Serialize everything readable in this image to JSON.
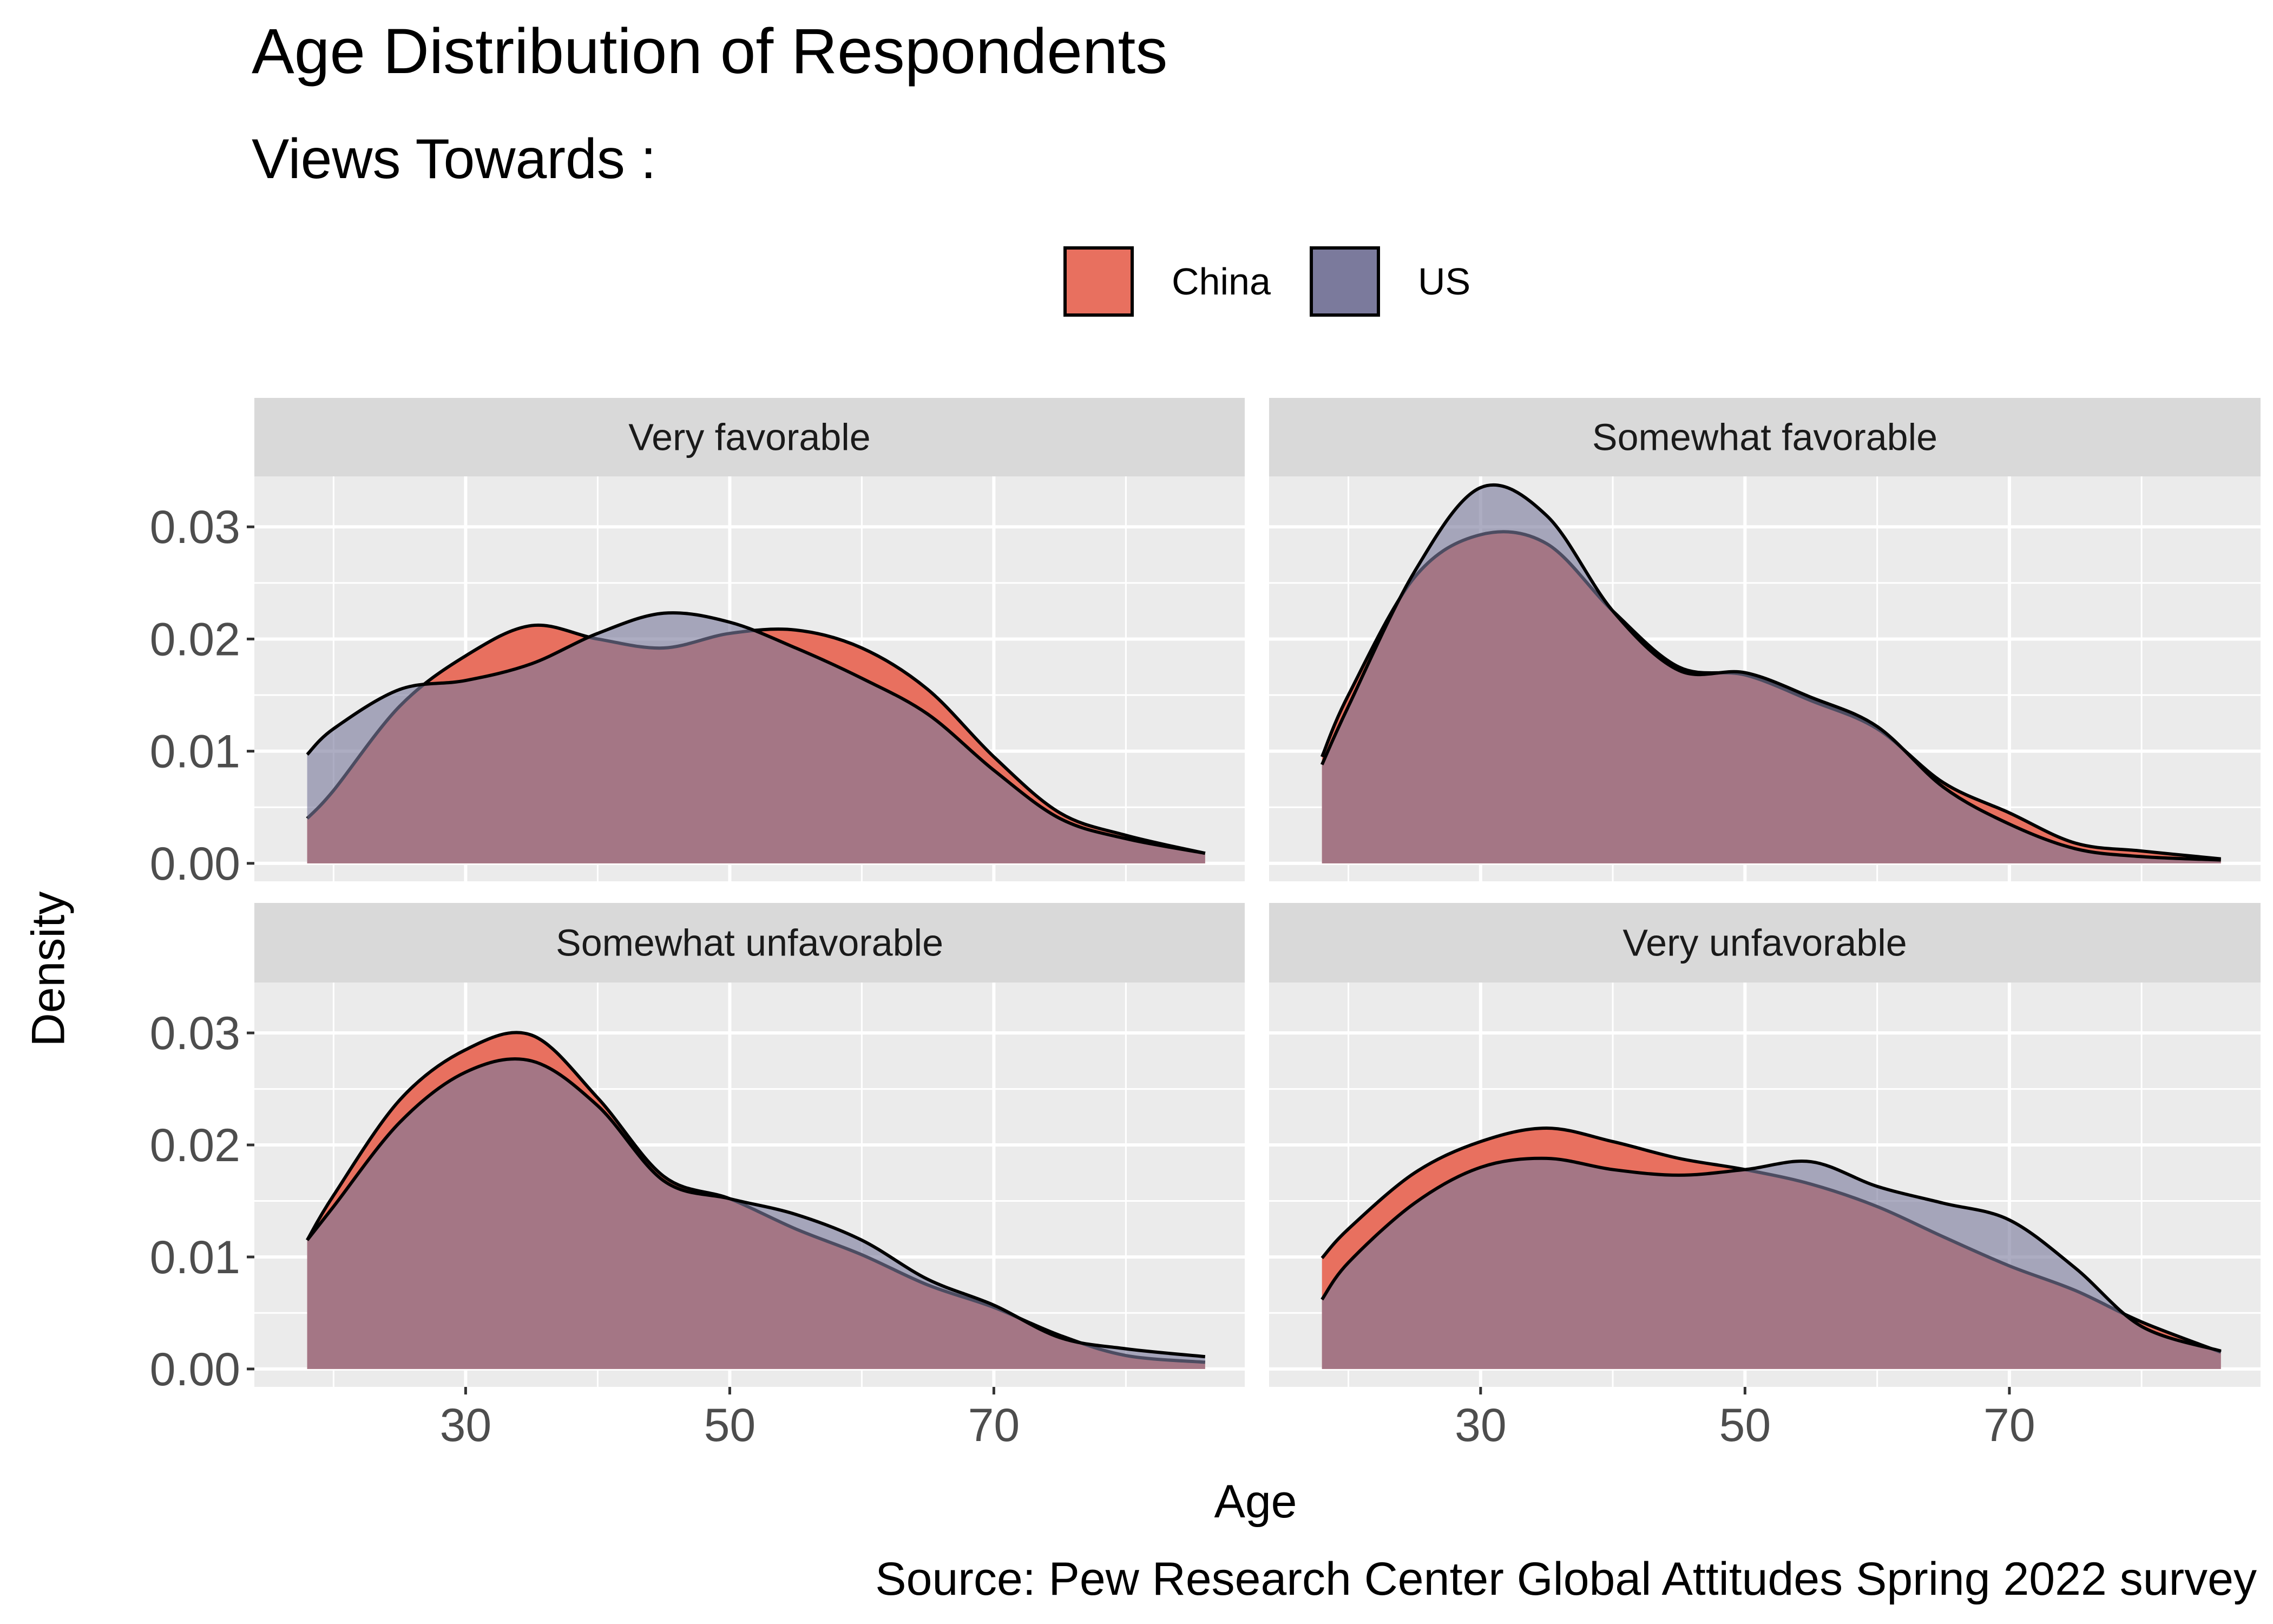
{
  "title": "Age Distribution of Respondents",
  "subtitle": "Views Towards :",
  "caption": "Source: Pew Research Center Global Attitudes Spring 2022 survey",
  "colors": {
    "China": "#e8705f",
    "US": "#7b7a9c",
    "overlap": "#7e5169",
    "panel_bg": "#ebebeb",
    "strip_bg": "#d9d9d9",
    "grid": "#ffffff"
  },
  "legend": {
    "items": [
      {
        "label": "China",
        "color": "#e8705f"
      },
      {
        "label": "US",
        "color": "#7b7a9c"
      }
    ]
  },
  "chart_data": {
    "type": "area",
    "subtype": "density",
    "xlabel": "Age",
    "ylabel": "Density",
    "xlim": [
      14,
      89
    ],
    "ylim": [
      -0.0016,
      0.0345
    ],
    "x_ticks": [
      30,
      50,
      70
    ],
    "y_ticks": [
      0.0,
      0.01,
      0.02,
      0.03
    ],
    "y_tick_labels": [
      "0.00",
      "0.01",
      "0.02",
      "0.03"
    ],
    "grid": true,
    "legend_position": "top",
    "x": [
      18,
      20,
      25,
      30,
      35,
      40,
      45,
      50,
      55,
      60,
      65,
      70,
      75,
      80,
      86
    ],
    "panels": [
      {
        "label": "Very favorable",
        "series": [
          {
            "name": "China",
            "values": [
              0.004,
              0.0065,
              0.014,
              0.0185,
              0.0212,
              0.02,
              0.0192,
              0.0205,
              0.0208,
              0.0192,
              0.0155,
              0.0095,
              0.0045,
              0.0025,
              0.0009
            ]
          },
          {
            "name": "US",
            "values": [
              0.0097,
              0.012,
              0.0155,
              0.0163,
              0.0178,
              0.0205,
              0.0223,
              0.0215,
              0.0192,
              0.0165,
              0.0133,
              0.0083,
              0.004,
              0.0022,
              0.0009
            ]
          }
        ]
      },
      {
        "label": "Somewhat favorable",
        "series": [
          {
            "name": "China",
            "values": [
              0.0095,
              0.015,
              0.0255,
              0.0293,
              0.0285,
              0.0225,
              0.0175,
              0.0168,
              0.0145,
              0.012,
              0.0072,
              0.0045,
              0.0018,
              0.0011,
              0.0004
            ]
          },
          {
            "name": "US",
            "values": [
              0.0088,
              0.014,
              0.026,
              0.0335,
              0.031,
              0.0225,
              0.0172,
              0.017,
              0.0148,
              0.0122,
              0.0068,
              0.0035,
              0.0013,
              0.0006,
              0.0003
            ]
          }
        ]
      },
      {
        "label": "Somewhat unfavorable",
        "series": [
          {
            "name": "China",
            "values": [
              0.0115,
              0.0155,
              0.024,
              0.0285,
              0.0298,
              0.0242,
              0.0172,
              0.0152,
              0.0125,
              0.0102,
              0.0075,
              0.0055,
              0.003,
              0.0012,
              0.0006
            ]
          },
          {
            "name": "US",
            "values": [
              0.0115,
              0.0145,
              0.022,
              0.0265,
              0.0275,
              0.0235,
              0.0168,
              0.0152,
              0.0138,
              0.0115,
              0.008,
              0.0057,
              0.0028,
              0.0018,
              0.0011
            ]
          }
        ]
      },
      {
        "label": "Very unfavorable",
        "series": [
          {
            "name": "China",
            "values": [
              0.0099,
              0.0125,
              0.0175,
              0.0203,
              0.0215,
              0.0203,
              0.0188,
              0.0178,
              0.0165,
              0.0145,
              0.0118,
              0.0092,
              0.007,
              0.0042,
              0.0015
            ]
          },
          {
            "name": "US",
            "values": [
              0.0062,
              0.0095,
              0.0148,
              0.018,
              0.0188,
              0.0178,
              0.0173,
              0.0178,
              0.0185,
              0.0163,
              0.0148,
              0.0133,
              0.009,
              0.0038,
              0.0016
            ]
          }
        ]
      }
    ]
  }
}
